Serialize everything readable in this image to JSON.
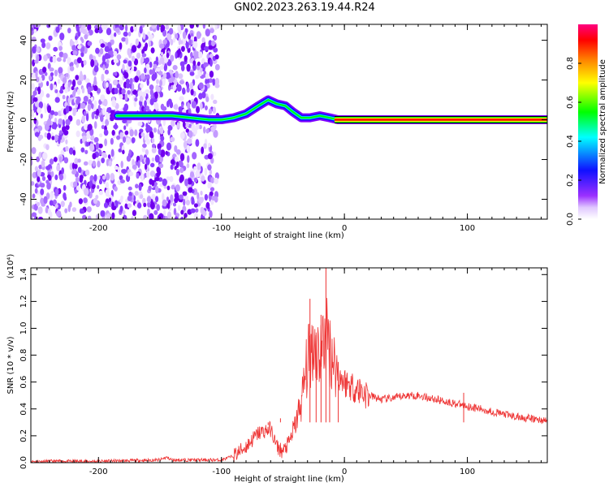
{
  "title": "GN02.2023.263.19.44.R24",
  "chart_data": [
    {
      "type": "heatmap",
      "xlabel": "Height of straight line (km)",
      "ylabel": "Frequency (Hz)",
      "xlim": [
        -255,
        165
      ],
      "ylim": [
        -50,
        48
      ],
      "xticks": [
        -200,
        -100,
        0,
        100
      ],
      "yticks": [
        -40,
        -20,
        0,
        20,
        40
      ],
      "colorbar": {
        "label": "Normalized spectral amplitude",
        "range": [
          0.0,
          1.0
        ],
        "ticks": [
          0.0,
          0.2,
          0.4,
          0.6,
          0.8
        ],
        "colormap": [
          "#ffffff",
          "#d9b3ff",
          "#7f00ff",
          "#0000ff",
          "#00ffff",
          "#00ff00",
          "#ffff00",
          "#ff8000",
          "#ff0000",
          "#ff0080"
        ]
      },
      "ridge": {
        "x": [
          -185,
          -170,
          -155,
          -140,
          -125,
          -110,
          -100,
          -90,
          -80,
          -70,
          -62,
          -55,
          -48,
          -42,
          -35,
          -28,
          -20,
          -12,
          -5,
          0,
          50,
          100,
          165
        ],
        "y": [
          2,
          2,
          2,
          2,
          1,
          0,
          0,
          1,
          3,
          7,
          10,
          8,
          7,
          4,
          1,
          1,
          2,
          1,
          0,
          0,
          0,
          0,
          0
        ]
      }
    },
    {
      "type": "line",
      "xlabel": "Height of straight line (km)",
      "ylabel": "SNR (10 * v/v)",
      "yscale_label": "(x10⁴)",
      "xlim": [
        -255,
        165
      ],
      "ylim": [
        0,
        1.45
      ],
      "xticks": [
        -200,
        -100,
        0,
        100
      ],
      "yticks": [
        0.0,
        0.2,
        0.4,
        0.6,
        0.8,
        1.0,
        1.2,
        1.4
      ],
      "series": [
        {
          "color": "#ee3333",
          "x": [
            -255,
            -200,
            -150,
            -145,
            -140,
            -120,
            -100,
            -90,
            -80,
            -70,
            -60,
            -55,
            -50,
            -45,
            -40,
            -35,
            -30,
            -25,
            -20,
            -15,
            -10,
            -5,
            0,
            10,
            20,
            30,
            40,
            50,
            60,
            70,
            80,
            90,
            100,
            110,
            120,
            130,
            140,
            150,
            165
          ],
          "y": [
            0.01,
            0.01,
            0.02,
            0.04,
            0.02,
            0.02,
            0.02,
            0.05,
            0.12,
            0.22,
            0.25,
            0.12,
            0.08,
            0.15,
            0.28,
            0.45,
            0.75,
            0.9,
            0.8,
            0.95,
            0.8,
            0.65,
            0.6,
            0.55,
            0.5,
            0.47,
            0.48,
            0.5,
            0.5,
            0.48,
            0.46,
            0.44,
            0.42,
            0.4,
            0.38,
            0.36,
            0.34,
            0.33,
            0.31
          ]
        }
      ],
      "spikes": [
        {
          "x": -28,
          "y": 1.22
        },
        {
          "x": -23,
          "y": 0.95
        },
        {
          "x": -19,
          "y": 1.1
        },
        {
          "x": -15,
          "y": 1.45
        },
        {
          "x": -12,
          "y": 0.85
        },
        {
          "x": -5,
          "y": 0.75
        },
        {
          "x": -52,
          "y": 0.33
        },
        {
          "x": -62,
          "y": 0.28
        },
        {
          "x": 97,
          "y": 0.52
        }
      ]
    }
  ]
}
